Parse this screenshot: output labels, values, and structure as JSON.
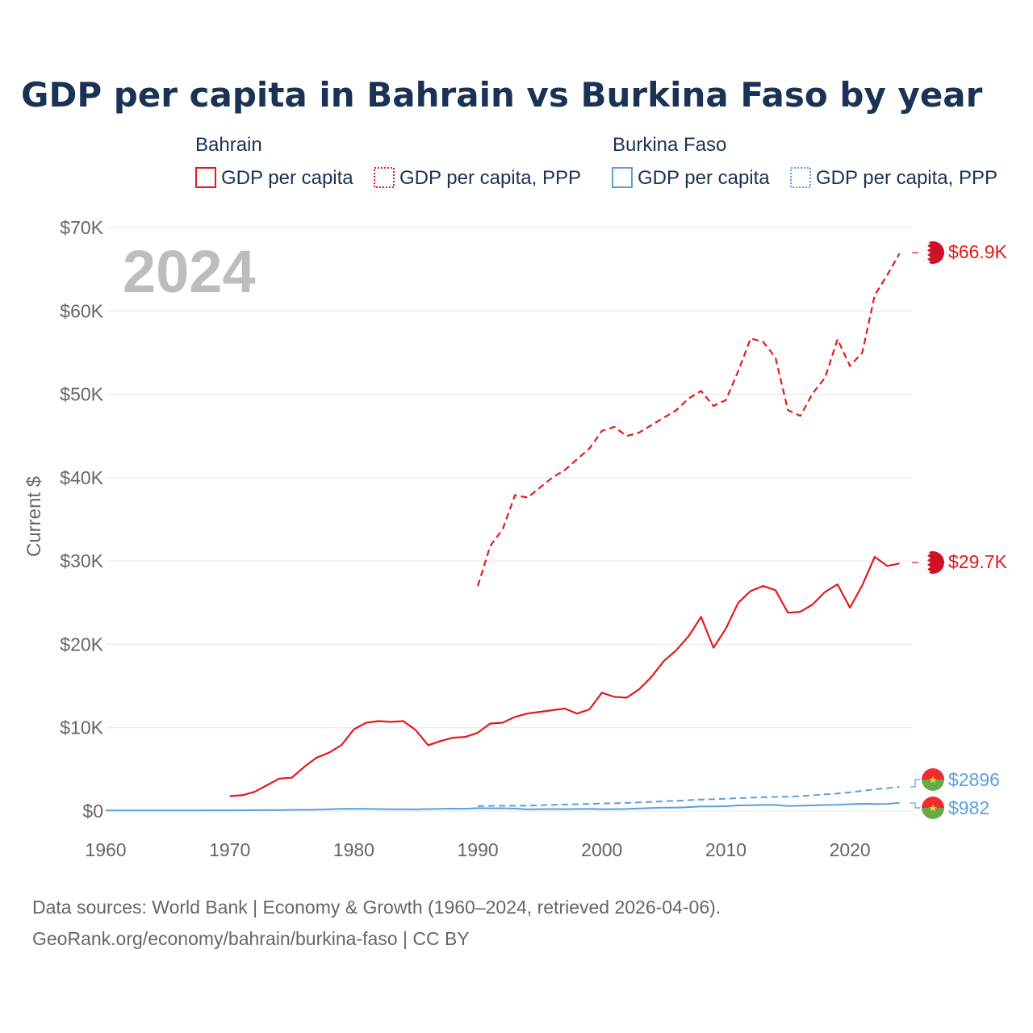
{
  "chart_data": {
    "type": "line",
    "title": "GDP per capita in Bahrain vs Burkina Faso by year",
    "ylabel": "Current $",
    "xlabel": "",
    "year_label": "2024",
    "xlim": [
      1960,
      2025
    ],
    "ylim": [
      0,
      70000
    ],
    "x_ticks": [
      1960,
      1970,
      1980,
      1990,
      2000,
      2010,
      2020
    ],
    "x_tick_labels": [
      "1960",
      "1970",
      "1980",
      "1990",
      "2000",
      "2010",
      "2020"
    ],
    "y_ticks": [
      0,
      10000,
      20000,
      30000,
      40000,
      50000,
      60000,
      70000
    ],
    "y_tick_labels": [
      "$0",
      "$10K",
      "$20K",
      "$30K",
      "$40K",
      "$50K",
      "$60K",
      "$70K"
    ],
    "legend": {
      "groups": [
        {
          "name": "Bahrain",
          "entries": [
            "GDP per capita",
            "GDP per capita, PPP"
          ]
        },
        {
          "name": "Burkina Faso",
          "entries": [
            "GDP per capita",
            "GDP per capita, PPP"
          ]
        }
      ]
    },
    "series": [
      {
        "name": "Bahrain GDP per capita",
        "country": "Bahrain",
        "style": "solid",
        "color": "#e31a1c",
        "end_label": "$29.7K",
        "x": [
          1970,
          1971,
          1972,
          1973,
          1974,
          1975,
          1976,
          1977,
          1978,
          1979,
          1980,
          1981,
          1982,
          1983,
          1984,
          1985,
          1986,
          1987,
          1988,
          1989,
          1990,
          1991,
          1992,
          1993,
          1994,
          1995,
          1996,
          1997,
          1998,
          1999,
          2000,
          2001,
          2002,
          2003,
          2004,
          2005,
          2006,
          2007,
          2008,
          2009,
          2010,
          2011,
          2012,
          2013,
          2014,
          2015,
          2016,
          2017,
          2018,
          2019,
          2020,
          2021,
          2022,
          2023,
          2024
        ],
        "values": [
          1800,
          1900,
          2300,
          3100,
          3900,
          4000,
          5300,
          6400,
          7000,
          7900,
          9800,
          10600,
          10800,
          10700,
          10800,
          9700,
          7900,
          8400,
          8800,
          8900,
          9400,
          10500,
          10600,
          11300,
          11700,
          11900,
          12100,
          12300,
          11700,
          12200,
          14200,
          13700,
          13600,
          14600,
          16100,
          18000,
          19300,
          21000,
          23300,
          19600,
          21900,
          25000,
          26400,
          27000,
          26500,
          23800,
          23900,
          24800,
          26300,
          27200,
          24400,
          27100,
          30500,
          29400,
          29700
        ]
      },
      {
        "name": "Bahrain GDP per capita, PPP",
        "country": "Bahrain",
        "style": "dashed",
        "color": "#e31a1c",
        "end_label": "$66.9K",
        "x": [
          1990,
          1991,
          1992,
          1993,
          1994,
          1995,
          1996,
          1997,
          1998,
          1999,
          2000,
          2001,
          2002,
          2003,
          2004,
          2005,
          2006,
          2007,
          2008,
          2009,
          2010,
          2011,
          2012,
          2013,
          2014,
          2015,
          2016,
          2017,
          2018,
          2019,
          2020,
          2021,
          2022,
          2023,
          2024
        ],
        "values": [
          27000,
          31800,
          33800,
          37900,
          37600,
          38800,
          40000,
          40900,
          42200,
          43500,
          45600,
          46100,
          45000,
          45400,
          46300,
          47200,
          48100,
          49500,
          50400,
          48600,
          49300,
          52800,
          56700,
          56300,
          54400,
          48100,
          47400,
          50100,
          52000,
          56600,
          53400,
          55000,
          61900,
          64300,
          66900
        ]
      },
      {
        "name": "Burkina Faso GDP per capita",
        "country": "Burkina Faso",
        "style": "solid",
        "color": "#5b9fdc",
        "end_label": "$982",
        "x": [
          1960,
          1961,
          1962,
          1963,
          1964,
          1965,
          1966,
          1967,
          1968,
          1969,
          1970,
          1971,
          1972,
          1973,
          1974,
          1975,
          1976,
          1977,
          1978,
          1979,
          1980,
          1981,
          1982,
          1983,
          1984,
          1985,
          1986,
          1987,
          1988,
          1989,
          1990,
          1991,
          1992,
          1993,
          1994,
          1995,
          1996,
          1997,
          1998,
          1999,
          2000,
          2001,
          2002,
          2003,
          2004,
          2005,
          2006,
          2007,
          2008,
          2009,
          2010,
          2011,
          2012,
          2013,
          2014,
          2015,
          2016,
          2017,
          2018,
          2019,
          2020,
          2021,
          2022,
          2023,
          2024
        ],
        "values": [
          70,
          70,
          72,
          74,
          76,
          78,
          80,
          82,
          84,
          86,
          88,
          95,
          110,
          125,
          130,
          150,
          155,
          170,
          210,
          260,
          280,
          260,
          240,
          220,
          210,
          200,
          240,
          270,
          290,
          280,
          350,
          330,
          340,
          300,
          200,
          230,
          240,
          230,
          250,
          260,
          230,
          230,
          250,
          320,
          370,
          410,
          420,
          470,
          560,
          550,
          580,
          680,
          700,
          740,
          740,
          600,
          640,
          680,
          740,
          760,
          820,
          870,
          850,
          860,
          982
        ]
      },
      {
        "name": "Burkina Faso GDP per capita, PPP",
        "country": "Burkina Faso",
        "style": "dashed",
        "color": "#5b9fdc",
        "end_label": "$2896",
        "x": [
          1990,
          1991,
          1992,
          1993,
          1994,
          1995,
          1996,
          1997,
          1998,
          1999,
          2000,
          2001,
          2002,
          2003,
          2004,
          2005,
          2006,
          2007,
          2008,
          2009,
          2010,
          2011,
          2012,
          2013,
          2014,
          2015,
          2016,
          2017,
          2018,
          2019,
          2020,
          2021,
          2022,
          2023,
          2024
        ],
        "values": [
          600,
          620,
          640,
          640,
          650,
          700,
          740,
          780,
          820,
          860,
          900,
          940,
          980,
          1040,
          1100,
          1170,
          1230,
          1310,
          1380,
          1420,
          1480,
          1550,
          1610,
          1660,
          1700,
          1720,
          1790,
          1890,
          2000,
          2110,
          2250,
          2420,
          2600,
          2750,
          2896
        ]
      }
    ]
  },
  "source_text": {
    "line1": "Data sources: World Bank | Economy & Growth (1960–2024, retrieved 2026-04-06).",
    "line2": "GeoRank.org/economy/bahrain/burkina-faso | CC BY"
  },
  "colors": {
    "bahrain": "#e31a1c",
    "burkina": "#5b9fdc",
    "title": "#1a3254",
    "axis_text": "#666666",
    "watermark": "#bdbdbd"
  },
  "icons": {
    "bahrain_marker": "bahrain-flag-icon",
    "burkina_marker": "burkina-faso-flag-icon"
  }
}
